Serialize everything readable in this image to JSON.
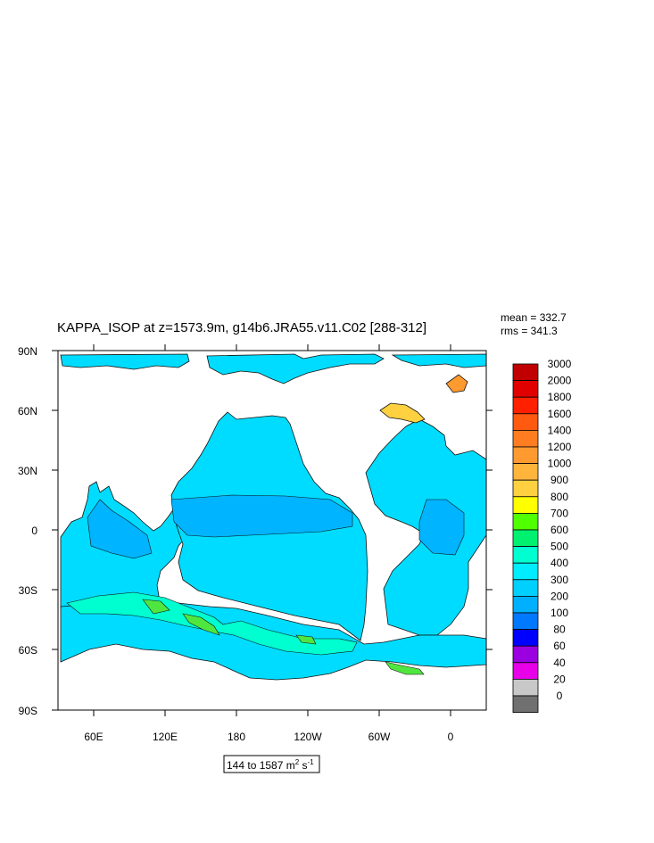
{
  "title": "KAPPA_ISOP at z=1573.9m, g14b6.JRA55.v11.C02 [288-312]",
  "stats": {
    "mean": "mean = 332.7",
    "rms": "rms = 341.3"
  },
  "range_label": {
    "text": "144 to 1587 m",
    "sup1": "2",
    "mid": " s",
    "sup2": "-1"
  },
  "axes": {
    "lat_labels": [
      "90N",
      "60N",
      "30N",
      "0",
      "30S",
      "60S",
      "90S"
    ],
    "lon_labels": [
      "60E",
      "120E",
      "180",
      "120W",
      "60W",
      "0"
    ]
  },
  "colorbar": {
    "labels": [
      "3000",
      "2000",
      "1800",
      "1600",
      "1400",
      "1200",
      "1000",
      "900",
      "800",
      "700",
      "600",
      "500",
      "400",
      "300",
      "200",
      "100",
      "80",
      "60",
      "40",
      "20",
      "0"
    ],
    "colors": [
      "#c00000",
      "#e00000",
      "#ff2000",
      "#ff5a10",
      "#ff7d20",
      "#ff9a30",
      "#ffb43c",
      "#ffd040",
      "#ffff00",
      "#50ff00",
      "#00f070",
      "#00ffd0",
      "#00ecff",
      "#00d0ff",
      "#00b0ff",
      "#0078ff",
      "#0000ff",
      "#9a00e0",
      "#e800e8",
      "#c8c8c8",
      "#707070"
    ]
  },
  "palette": {
    "ocean_base": "#00dcff",
    "ocean_mid": "#00b4ff",
    "high_green": "#50e640",
    "land": "#ffffff"
  }
}
